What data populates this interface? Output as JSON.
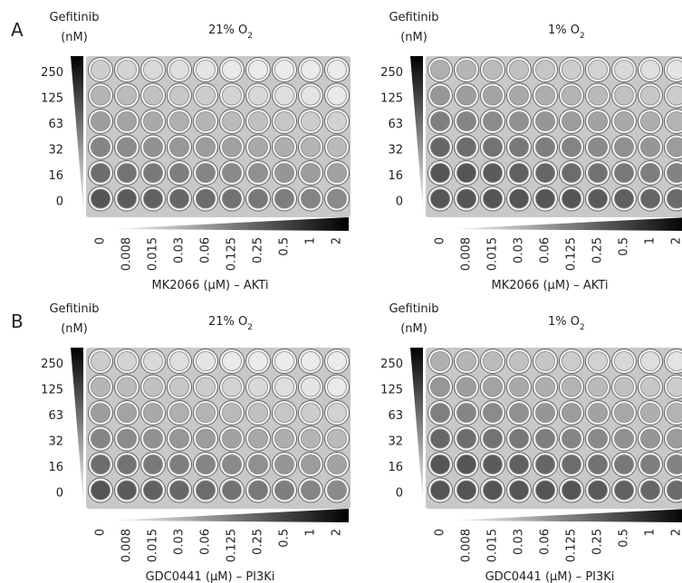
{
  "panels": [
    {
      "label": "A",
      "plates": [
        {
          "y_title": [
            "Gefitinib",
            "(nM)"
          ],
          "condition": {
            "text": "21% O",
            "sub": "2"
          },
          "rows": [
            "250",
            "125",
            "63",
            "32",
            "16",
            "0"
          ],
          "columns": [
            "0",
            "0.008",
            "0.015",
            "0.03",
            "0.06",
            "0.125",
            "0.25",
            "0.5",
            "1",
            "2"
          ],
          "x_label": "MK2066 (µM) – AKTi"
        },
        {
          "y_title": [
            "Gefitinib",
            "(nM)"
          ],
          "condition": {
            "text": "1% O",
            "sub": "2"
          },
          "rows": [
            "250",
            "125",
            "63",
            "32",
            "16",
            "0"
          ],
          "columns": [
            "0",
            "0.008",
            "0.015",
            "0.03",
            "0.06",
            "0.125",
            "0.25",
            "0.5",
            "1",
            "2"
          ],
          "x_label": "MK2066 (µM) – AKTi"
        }
      ]
    },
    {
      "label": "B",
      "plates": [
        {
          "y_title": [
            "Gefitinib",
            "(nM)"
          ],
          "condition": {
            "text": "21% O",
            "sub": "2"
          },
          "rows": [
            "250",
            "125",
            "63",
            "32",
            "16",
            "0"
          ],
          "columns": [
            "0",
            "0.008",
            "0.015",
            "0.03",
            "0.06",
            "0.125",
            "0.25",
            "0.5",
            "1",
            "2"
          ],
          "x_label": "GDC0441 (µM) – PI3Ki"
        },
        {
          "y_title": [
            "Gefitinib",
            "(nM)"
          ],
          "condition": {
            "text": "1% O",
            "sub": "2"
          },
          "rows": [
            "250",
            "125",
            "63",
            "32",
            "16",
            "0"
          ],
          "columns": [
            "0",
            "0.008",
            "0.015",
            "0.03",
            "0.06",
            "0.125",
            "0.25",
            "0.5",
            "1",
            "2"
          ],
          "x_label": "GDC0441 (µM) – PI3Ki"
        }
      ]
    }
  ]
}
